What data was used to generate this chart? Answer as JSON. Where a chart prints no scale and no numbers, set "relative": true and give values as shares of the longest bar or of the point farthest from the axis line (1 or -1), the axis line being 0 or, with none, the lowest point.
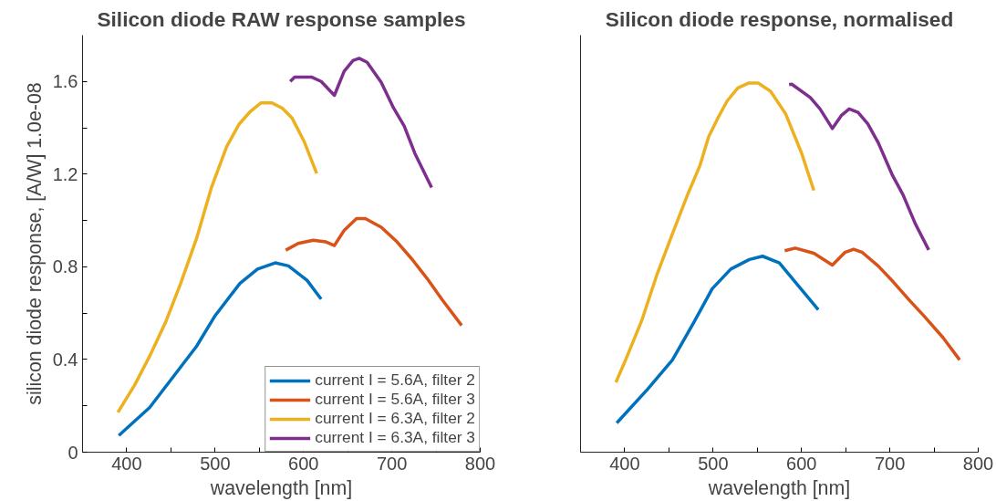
{
  "chart_data": [
    {
      "type": "line",
      "title": "Silicon diode RAW response samples",
      "xlabel": "wavelength [nm]",
      "ylabel": "silicon diode response, [A/W] 1.0e-08",
      "xlim": [
        350,
        800
      ],
      "xticks": [
        {
          "value": 350,
          "label": null
        },
        400,
        {
          "value": 450,
          "label": null
        },
        500,
        {
          "value": 550,
          "label": null
        },
        600,
        {
          "value": 650,
          "label": null
        },
        700,
        {
          "value": 750,
          "label": null
        },
        800
      ],
      "ylim": [
        0,
        1.8
      ],
      "yticks": [
        0,
        {
          "value": 0.2,
          "label": null
        },
        0.4,
        {
          "value": 0.6,
          "label": null
        },
        0.8,
        {
          "value": 1.0,
          "label": null
        },
        1.2,
        {
          "value": 1.4,
          "label": null
        },
        1.6
      ],
      "grid": false,
      "legend": "bottom right",
      "line_style": "solid",
      "series": [
        {
          "name": "current I = 5.6A, filter 2",
          "color": "#0072bd",
          "x": [
            391,
            426,
            479,
            500,
            528,
            548,
            568,
            583,
            604,
            620
          ],
          "values": [
            0.072,
            0.193,
            0.457,
            0.589,
            0.728,
            0.79,
            0.817,
            0.804,
            0.742,
            0.661
          ]
        },
        {
          "name": "current I = 5.6A, filter 3",
          "color": "#d95319",
          "x": [
            580,
            594,
            611,
            625,
            635,
            646,
            660,
            670,
            688,
            705,
            723,
            740,
            757,
            779
          ],
          "values": [
            0.872,
            0.901,
            0.915,
            0.908,
            0.892,
            0.957,
            1.008,
            1.008,
            0.971,
            0.911,
            0.832,
            0.749,
            0.658,
            0.547
          ]
        },
        {
          "name": "current I = 6.3A, filter 2",
          "color": "#edb120",
          "x": [
            390,
            409,
            426,
            444,
            461,
            479,
            496,
            513,
            527,
            540,
            552,
            564,
            576,
            587,
            601,
            615
          ],
          "values": [
            0.172,
            0.29,
            0.415,
            0.561,
            0.728,
            0.922,
            1.144,
            1.318,
            1.415,
            1.471,
            1.508,
            1.508,
            1.485,
            1.443,
            1.339,
            1.203
          ]
        },
        {
          "name": "current I = 6.3A, filter 3",
          "color": "#7e2f8e",
          "x": [
            585,
            590,
            609,
            620,
            635,
            646,
            656,
            663,
            672,
            688,
            702,
            714,
            726,
            745
          ],
          "values": [
            1.6,
            1.619,
            1.619,
            1.6,
            1.54,
            1.644,
            1.69,
            1.7,
            1.683,
            1.596,
            1.485,
            1.408,
            1.29,
            1.142
          ]
        }
      ]
    },
    {
      "type": "line",
      "title": "Silicon diode response, normalised",
      "xlabel": "wavelength [nm]",
      "relative": true,
      "tick_labels": "x",
      "xlim": [
        350,
        800
      ],
      "xticks": [
        {
          "value": 350,
          "label": null
        },
        400,
        {
          "value": 450,
          "label": null
        },
        500,
        {
          "value": 550,
          "label": null
        },
        600,
        {
          "value": 650,
          "label": null
        },
        700,
        {
          "value": 750,
          "label": null
        },
        800
      ],
      "grid": false,
      "line_style": "solid",
      "series": [
        {
          "color": "#0072bd",
          "x": [
            391,
            426,
            454,
            478,
            499,
            520,
            541,
            556,
            575,
            596,
            619
          ],
          "values": [
            0.079,
            0.171,
            0.25,
            0.351,
            0.443,
            0.496,
            0.522,
            0.531,
            0.513,
            0.452,
            0.386
          ]
        },
        {
          "color": "#d95319",
          "x": [
            581,
            593,
            614,
            635,
            649,
            659,
            669,
            687,
            704,
            722,
            739,
            760,
            779
          ],
          "values": [
            0.546,
            0.553,
            0.539,
            0.507,
            0.541,
            0.55,
            0.541,
            0.504,
            0.461,
            0.412,
            0.368,
            0.311,
            0.25
          ]
        },
        {
          "color": "#edb120",
          "x": [
            390,
            401,
            419,
            436,
            454,
            471,
            485,
            495,
            506,
            516,
            528,
            540,
            551,
            565,
            582,
            600,
            614
          ],
          "values": [
            0.189,
            0.25,
            0.355,
            0.478,
            0.592,
            0.697,
            0.776,
            0.855,
            0.908,
            0.952,
            0.987,
            1.0,
            1.0,
            0.978,
            0.917,
            0.811,
            0.709
          ]
        },
        {
          "color": "#7e2f8e",
          "x": [
            586,
            589,
            610,
            621,
            635,
            645,
            654,
            664,
            675,
            687,
            703,
            715,
            729,
            744
          ],
          "values": [
            0.996,
            0.997,
            0.961,
            0.93,
            0.877,
            0.912,
            0.93,
            0.921,
            0.89,
            0.838,
            0.75,
            0.697,
            0.618,
            0.548
          ]
        }
      ]
    }
  ]
}
